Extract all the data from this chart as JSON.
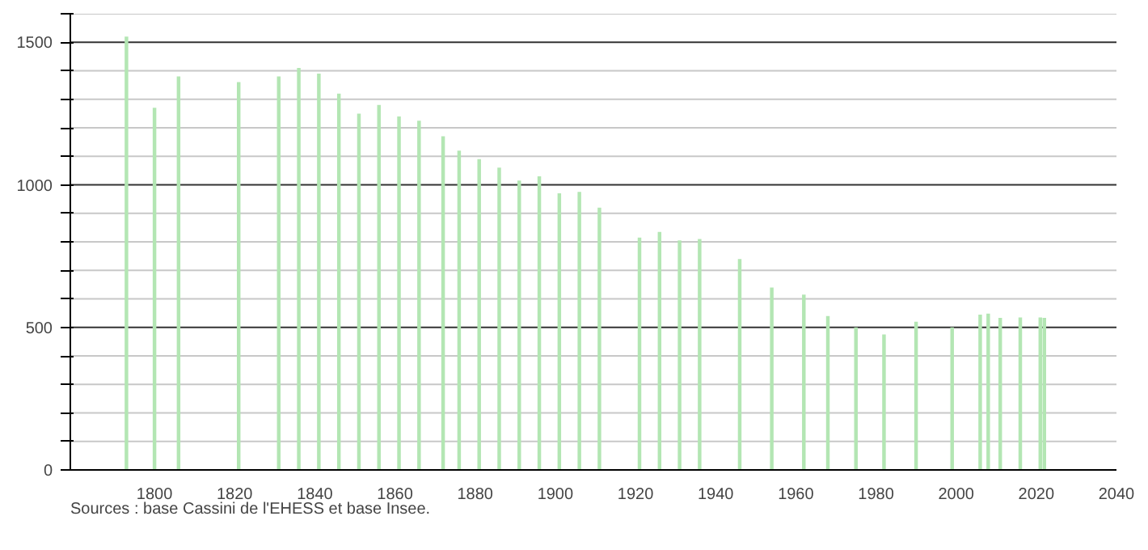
{
  "chart_data": {
    "type": "bar",
    "color": "#b3e6b3",
    "x": [
      1793,
      1800,
      1806,
      1821,
      1831,
      1836,
      1841,
      1846,
      1851,
      1856,
      1861,
      1866,
      1872,
      1876,
      1881,
      1886,
      1891,
      1896,
      1901,
      1906,
      1911,
      1921,
      1926,
      1931,
      1936,
      1946,
      1954,
      1962,
      1968,
      1975,
      1982,
      1990,
      1999,
      2006,
      2008,
      2011,
      2016,
      2021,
      2022
    ],
    "values": [
      1520,
      1270,
      1380,
      1360,
      1380,
      1410,
      1390,
      1320,
      1250,
      1280,
      1240,
      1225,
      1170,
      1120,
      1090,
      1060,
      1015,
      1030,
      970,
      975,
      920,
      815,
      835,
      805,
      810,
      740,
      640,
      615,
      540,
      500,
      475,
      520,
      500,
      545,
      548,
      533,
      535,
      535,
      533
    ],
    "xlim": [
      1779,
      2040
    ],
    "xticks": [
      1800,
      1820,
      1840,
      1860,
      1880,
      1900,
      1920,
      1940,
      1960,
      1980,
      2000,
      2020,
      2040
    ],
    "ylim": [
      0,
      1600
    ],
    "yticks": [
      0,
      {
        "value": 100,
        "label": null
      },
      {
        "value": 200,
        "label": null
      },
      {
        "value": 300,
        "label": null
      },
      {
        "value": 400,
        "label": null
      },
      500,
      {
        "value": 600,
        "label": null
      },
      {
        "value": 700,
        "label": null
      },
      {
        "value": 800,
        "label": null
      },
      {
        "value": 900,
        "label": null
      },
      1000,
      {
        "value": 1100,
        "label": null
      },
      {
        "value": 1200,
        "label": null
      },
      {
        "value": 1300,
        "label": null
      },
      {
        "value": 1400,
        "label": null
      },
      1500,
      {
        "value": 1600,
        "label": null
      }
    ],
    "grid": "y",
    "annotations": [
      "Sources : base Cassini de l'EHESS et base Insee."
    ]
  }
}
